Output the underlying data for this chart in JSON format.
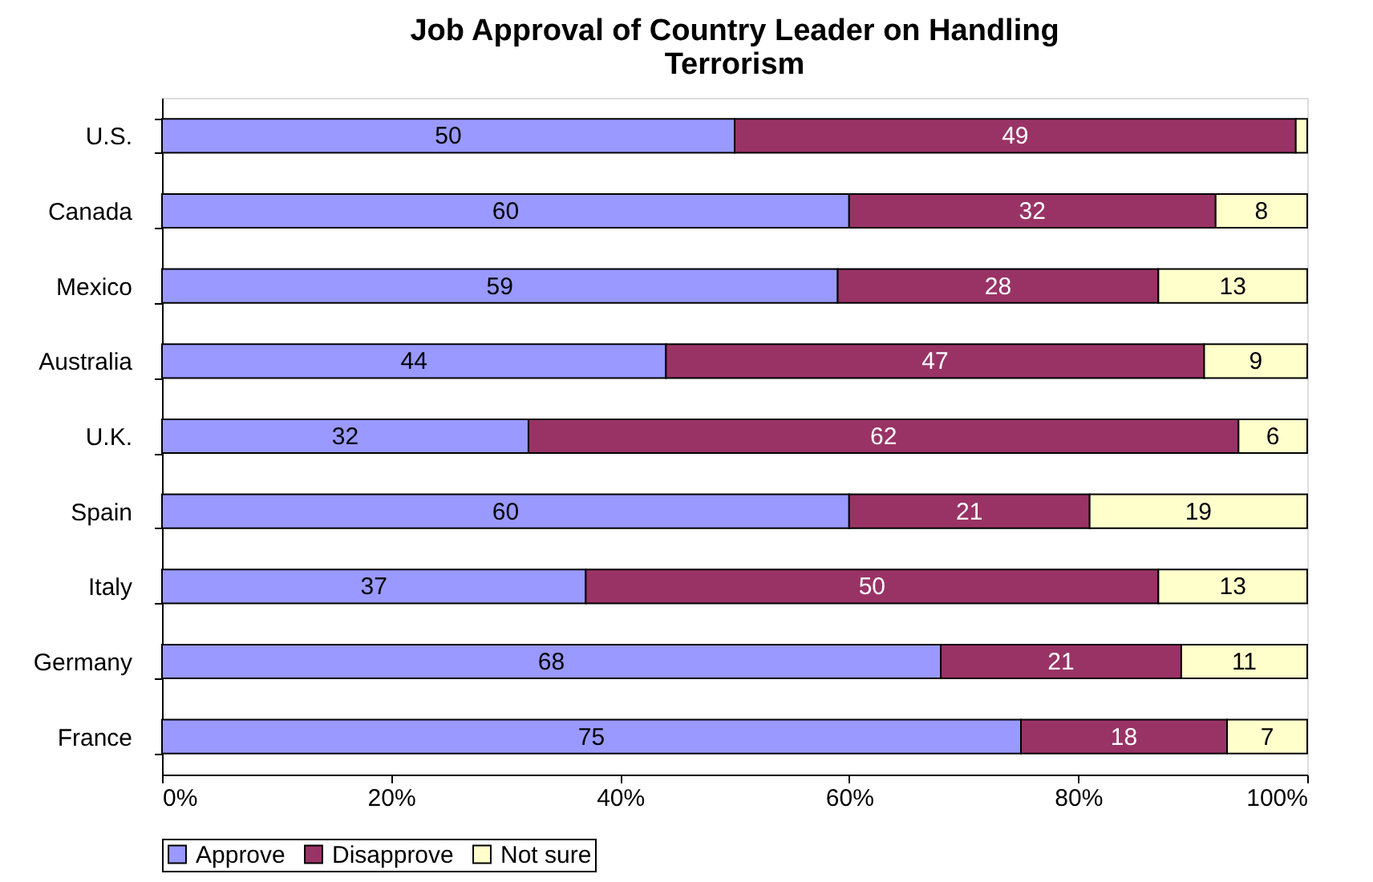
{
  "chart_data": {
    "type": "bar",
    "orientation": "horizontal",
    "stacked": true,
    "title": "Job Approval of Country Leader on Handling Terrorism",
    "categories": [
      "U.S.",
      "Canada",
      "Mexico",
      "Australia",
      "U.K.",
      "Spain",
      "Italy",
      "Germany",
      "France"
    ],
    "series": [
      {
        "name": "Approve",
        "color": "#9999ff",
        "values": [
          50,
          60,
          59,
          44,
          32,
          60,
          37,
          68,
          75
        ],
        "value_labels": [
          "50",
          "60",
          "59",
          "44",
          "32",
          "60",
          "37",
          "68",
          "75"
        ]
      },
      {
        "name": "Disapprove",
        "color": "#993366",
        "values": [
          49,
          32,
          28,
          47,
          62,
          21,
          50,
          21,
          18
        ],
        "value_labels": [
          "49",
          "32",
          "28",
          "47",
          "62",
          "21",
          "50",
          "21",
          "18"
        ]
      },
      {
        "name": "Not sure",
        "color": "#ffffcc",
        "values": [
          1,
          8,
          13,
          9,
          6,
          19,
          13,
          11,
          7
        ],
        "value_labels": [
          null,
          "8",
          "13",
          "9",
          "6",
          "19",
          "13",
          "11",
          "7"
        ]
      }
    ],
    "xlim": [
      0,
      100
    ],
    "xticks": [
      {
        "value": 0,
        "label": "0%"
      },
      {
        "value": 20,
        "label": "20%"
      },
      {
        "value": 40,
        "label": "40%"
      },
      {
        "value": 60,
        "label": "60%"
      },
      {
        "value": 80,
        "label": "80%"
      },
      {
        "value": 100,
        "label": "100%"
      }
    ],
    "grid": false,
    "legend": "bottom"
  }
}
